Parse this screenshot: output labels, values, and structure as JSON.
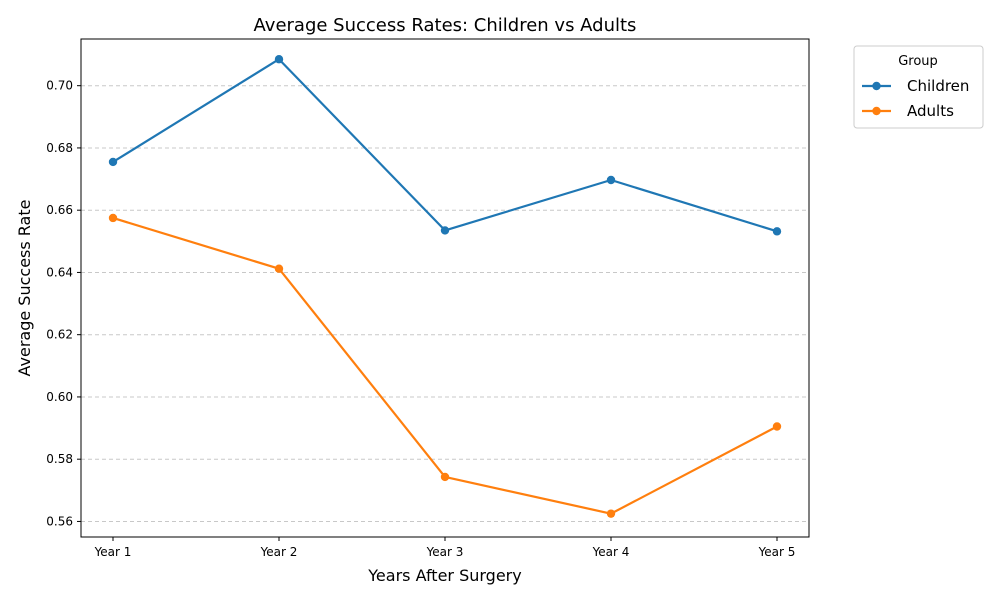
{
  "chart_data": {
    "type": "line",
    "title": "Average Success Rates: Children vs Adults",
    "xlabel": "Years After Surgery",
    "ylabel": "Average Success Rate",
    "categories": [
      "Year 1",
      "Year 2",
      "Year 3",
      "Year 4",
      "Year 5"
    ],
    "series": [
      {
        "name": "Children",
        "color": "#1f77b4",
        "values": [
          0.6755,
          0.7085,
          0.6535,
          0.6697,
          0.6532
        ]
      },
      {
        "name": "Adults",
        "color": "#ff7f0e",
        "values": [
          0.6575,
          0.6412,
          0.5743,
          0.5625,
          0.5905
        ]
      }
    ],
    "ylim": [
      0.555,
      0.715
    ],
    "yticks": [
      0.56,
      0.58,
      0.6,
      0.62,
      0.64,
      0.66,
      0.68,
      0.7
    ],
    "ytick_labels": [
      "0.56",
      "0.58",
      "0.60",
      "0.62",
      "0.64",
      "0.66",
      "0.68",
      "0.70"
    ],
    "grid": "y-dashed",
    "legend": {
      "title": "Group",
      "placement": "outside-top-right"
    }
  }
}
